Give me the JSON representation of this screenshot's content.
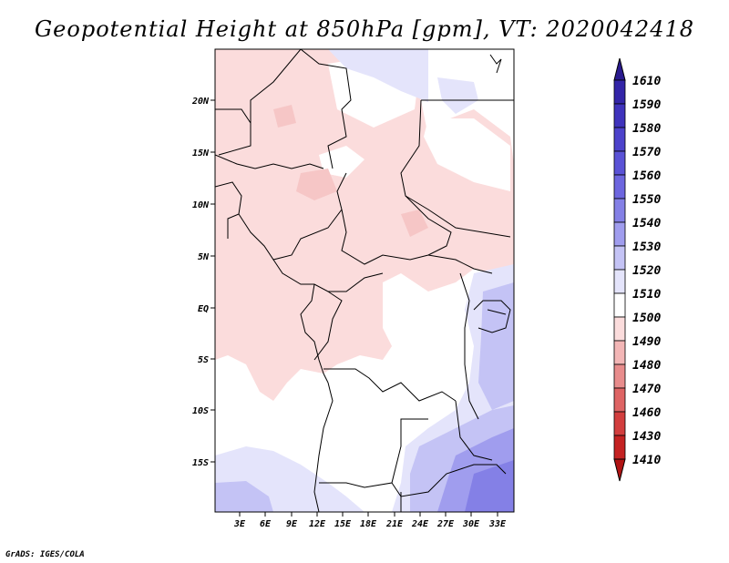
{
  "title": "Geopotential Height at 850hPa [gpm], VT: 2020042418",
  "footer": "GrADS: IGES/COLA",
  "map": {
    "lat_labels": [
      "20N",
      "15N",
      "10N",
      "5N",
      "EQ",
      "5S",
      "10S",
      "15S"
    ],
    "lon_labels": [
      "3E",
      "6E",
      "9E",
      "12E",
      "15E",
      "18E",
      "21E",
      "24E",
      "27E",
      "30E",
      "33E"
    ]
  },
  "colorbar": {
    "levels": [
      "1610",
      "1590",
      "1580",
      "1570",
      "1560",
      "1550",
      "1540",
      "1530",
      "1520",
      "1510",
      "1500",
      "1490",
      "1480",
      "1470",
      "1460",
      "1430",
      "1410"
    ],
    "colors": [
      "#2a1a8f",
      "#3325a8",
      "#3f33bc",
      "#4c42cb",
      "#5a52d6",
      "#6d66df",
      "#8480e6",
      "#a09dee",
      "#c4c3f5",
      "#e4e4fb",
      "#ffffff",
      "#fbdcdc",
      "#f3b6b6",
      "#e88c8c",
      "#de6464",
      "#d23e3e",
      "#c42222",
      "#b01313"
    ]
  }
}
